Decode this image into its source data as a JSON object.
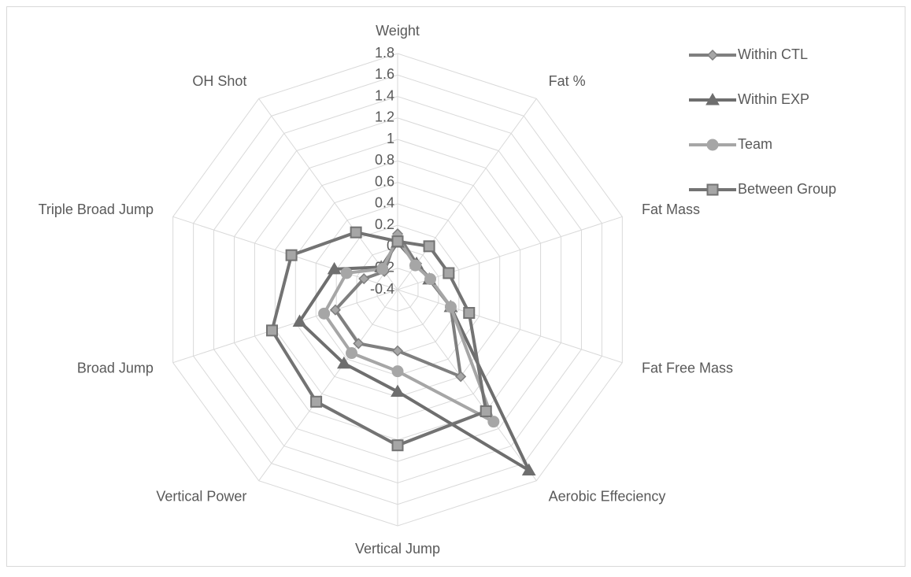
{
  "chart_data": {
    "type": "radar",
    "categories": [
      "Weight",
      "Fat %",
      "Fat Mass",
      "Fat Free Mass",
      "Aerobic Effeciency",
      "Vertical Jump",
      "Vertical Power",
      "Broad Jump",
      "Triple Broad Jump",
      "OH Shot"
    ],
    "ylim": [
      -0.4,
      1.8
    ],
    "yticks": [
      -0.4,
      -0.2,
      0,
      0.2,
      0.4,
      0.6,
      0.8,
      1,
      1.2,
      1.4,
      1.6,
      1.8
    ],
    "grid": true,
    "legend": "right",
    "series": [
      {
        "name": "Within CTL",
        "color": "#7f7f7f",
        "marker": "diamond",
        "values": [
          0.12,
          -0.1,
          -0.08,
          0.12,
          0.6,
          0.17,
          0.22,
          0.21,
          -0.07,
          -0.19
        ]
      },
      {
        "name": "Within EXP",
        "color": "#6e6e6e",
        "marker": "triangle",
        "values": [
          0.04,
          -0.1,
          -0.09,
          0.12,
          1.68,
          0.55,
          0.45,
          0.56,
          0.22,
          -0.14
        ]
      },
      {
        "name": "Team",
        "color": "#a6a6a6",
        "marker": "circle",
        "values": [
          0.08,
          -0.12,
          -0.08,
          0.12,
          1.12,
          0.36,
          0.33,
          0.32,
          0.1,
          -0.16
        ]
      },
      {
        "name": "Between Group",
        "color": "#737373",
        "marker": "square",
        "values": [
          0.05,
          0.1,
          0.1,
          0.3,
          1.0,
          1.05,
          0.89,
          0.83,
          0.64,
          0.26
        ]
      }
    ]
  }
}
